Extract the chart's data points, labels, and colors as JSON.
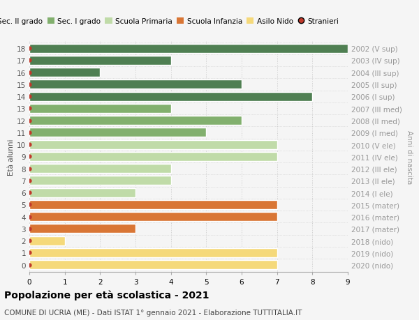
{
  "ages": [
    18,
    17,
    16,
    15,
    14,
    13,
    12,
    11,
    10,
    9,
    8,
    7,
    6,
    5,
    4,
    3,
    2,
    1,
    0
  ],
  "right_labels": [
    "2002 (V sup)",
    "2003 (IV sup)",
    "2004 (III sup)",
    "2005 (II sup)",
    "2006 (I sup)",
    "2007 (III med)",
    "2008 (II med)",
    "2009 (I med)",
    "2010 (V ele)",
    "2011 (IV ele)",
    "2012 (III ele)",
    "2013 (II ele)",
    "2014 (I ele)",
    "2015 (mater)",
    "2016 (mater)",
    "2017 (mater)",
    "2018 (nido)",
    "2019 (nido)",
    "2020 (nido)"
  ],
  "values": [
    9,
    4,
    2,
    6,
    8,
    4,
    6,
    5,
    7,
    7,
    4,
    4,
    3,
    7,
    7,
    3,
    1,
    7,
    7
  ],
  "colors": [
    "#4f7f52",
    "#4f7f52",
    "#4f7f52",
    "#4f7f52",
    "#4f7f52",
    "#82b06e",
    "#82b06e",
    "#82b06e",
    "#c0dba8",
    "#c0dba8",
    "#c0dba8",
    "#c0dba8",
    "#c0dba8",
    "#d97635",
    "#d97635",
    "#d97635",
    "#f5d97a",
    "#f5d97a",
    "#f5d97a"
  ],
  "xlim": [
    0,
    9
  ],
  "ylabel": "Età alunni",
  "right_ylabel": "Anni di nascita",
  "title": "Popolazione per età scolastica - 2021",
  "subtitle": "COMUNE DI UCRIA (ME) - Dati ISTAT 1° gennaio 2021 - Elaborazione TUTTITALIA.IT",
  "legend_labels": [
    "Sec. II grado",
    "Sec. I grado",
    "Scuola Primaria",
    "Scuola Infanzia",
    "Asilo Nido",
    "Stranieri"
  ],
  "legend_colors": [
    "#4f7f52",
    "#82b06e",
    "#c0dba8",
    "#d97635",
    "#f5d97a",
    "#c0392b"
  ],
  "bar_height": 0.75,
  "background_color": "#f5f5f5",
  "plot_bg_color": "#f5f5f5",
  "grid_color": "#cccccc",
  "title_fontsize": 10,
  "subtitle_fontsize": 7.5,
  "tick_fontsize": 7.5,
  "label_fontsize": 7.5,
  "legend_fontsize": 7.5,
  "right_label_color": "#999999",
  "left_tick_color": "#555555"
}
